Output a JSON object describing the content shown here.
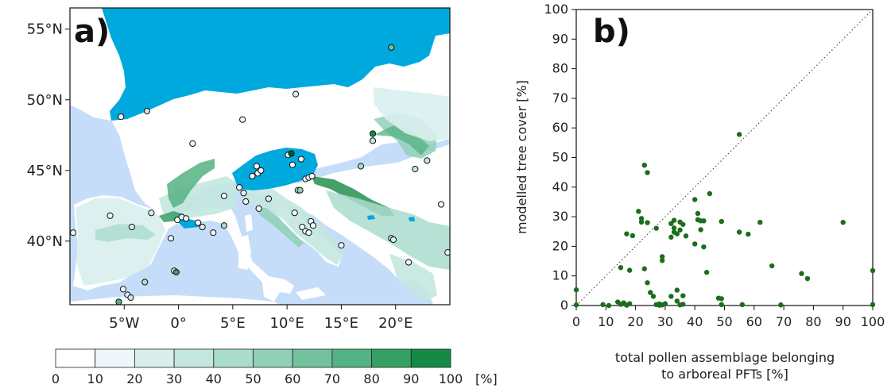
{
  "colors": {
    "ocean": "#c6ddfa",
    "ice": "#00a9dd",
    "land": "#ffffff",
    "points": "#1b6e1b",
    "colorbar": [
      "#ffffff",
      "#eef7fb",
      "#d9efee",
      "#c3e7df",
      "#aadccc",
      "#8fd0b6",
      "#72c29e",
      "#53b283",
      "#34a064",
      "#168a45",
      "#005a24"
    ]
  },
  "chart_data": [
    {
      "type": "map",
      "panel_label": "a)",
      "lat_ticks": [
        "55°N",
        "50°N",
        "45°N",
        "40°N"
      ],
      "lat_values": [
        55,
        50,
        45,
        40
      ],
      "lon_ticks": [
        "5°W",
        "0°",
        "5°E",
        "10°E",
        "15°E",
        "20°E"
      ],
      "lon_values": [
        -5,
        0,
        5,
        10,
        15,
        20
      ],
      "lon_range": [
        -10,
        25
      ],
      "lat_range": [
        35.5,
        56.5
      ],
      "colorbar": {
        "ticks": [
          "0",
          "10",
          "20",
          "30",
          "40",
          "50",
          "60",
          "70",
          "80",
          "90",
          "100"
        ],
        "unit": "[%]"
      },
      "sites": [
        {
          "lon": -9.7,
          "lat": 40.6,
          "value": 10
        },
        {
          "lon": -6.3,
          "lat": 41.8,
          "value": 5
        },
        {
          "lon": -4.3,
          "lat": 41.0,
          "value": 20
        },
        {
          "lon": -2.5,
          "lat": 42.0,
          "value": 15
        },
        {
          "lon": -0.7,
          "lat": 40.2,
          "value": 10
        },
        {
          "lon": -0.1,
          "lat": 41.5,
          "value": 10
        },
        {
          "lon": 0.3,
          "lat": 41.7,
          "value": 5
        },
        {
          "lon": 0.7,
          "lat": 41.6,
          "value": 8
        },
        {
          "lon": 1.8,
          "lat": 41.3,
          "value": 10
        },
        {
          "lon": 2.2,
          "lat": 41.0,
          "value": 15
        },
        {
          "lon": 3.2,
          "lat": 40.6,
          "value": 10
        },
        {
          "lon": 4.2,
          "lat": 41.1,
          "value": 35
        },
        {
          "lon": -5.1,
          "lat": 36.6,
          "value": 10
        },
        {
          "lon": -4.7,
          "lat": 36.2,
          "value": 15
        },
        {
          "lon": -4.4,
          "lat": 36.0,
          "value": 25
        },
        {
          "lon": -3.1,
          "lat": 37.1,
          "value": 40
        },
        {
          "lon": -0.4,
          "lat": 37.9,
          "value": 20
        },
        {
          "lon": -0.2,
          "lat": 37.8,
          "value": 80
        },
        {
          "lon": -5.5,
          "lat": 35.7,
          "value": 70
        },
        {
          "lon": -5.3,
          "lat": 48.8,
          "value": 5
        },
        {
          "lon": -2.9,
          "lat": 49.2,
          "value": 30
        },
        {
          "lon": 1.3,
          "lat": 46.9,
          "value": 5
        },
        {
          "lon": 5.9,
          "lat": 48.6,
          "value": 5
        },
        {
          "lon": 10.8,
          "lat": 50.4,
          "value": 15
        },
        {
          "lon": 19.6,
          "lat": 53.7,
          "value": 55
        },
        {
          "lon": 4.2,
          "lat": 43.2,
          "value": 5
        },
        {
          "lon": 5.6,
          "lat": 43.8,
          "value": 5
        },
        {
          "lon": 6.0,
          "lat": 43.4,
          "value": 5
        },
        {
          "lon": 6.2,
          "lat": 42.8,
          "value": 5
        },
        {
          "lon": 6.8,
          "lat": 44.6,
          "value": 5
        },
        {
          "lon": 7.2,
          "lat": 45.3,
          "value": 10
        },
        {
          "lon": 7.3,
          "lat": 44.8,
          "value": 5
        },
        {
          "lon": 7.6,
          "lat": 45.0,
          "value": 5
        },
        {
          "lon": 7.4,
          "lat": 42.3,
          "value": 5
        },
        {
          "lon": 8.3,
          "lat": 43.0,
          "value": 20
        },
        {
          "lon": 10.1,
          "lat": 46.1,
          "value": 5
        },
        {
          "lon": 10.4,
          "lat": 46.2,
          "value": 100
        },
        {
          "lon": 10.5,
          "lat": 45.4,
          "value": 10
        },
        {
          "lon": 11.3,
          "lat": 45.8,
          "value": 5
        },
        {
          "lon": 11.0,
          "lat": 43.6,
          "value": 30
        },
        {
          "lon": 11.2,
          "lat": 43.6,
          "value": 50
        },
        {
          "lon": 11.7,
          "lat": 44.4,
          "value": 5
        },
        {
          "lon": 12.0,
          "lat": 44.5,
          "value": 5
        },
        {
          "lon": 12.3,
          "lat": 44.6,
          "value": 5
        },
        {
          "lon": 10.7,
          "lat": 42.0,
          "value": 10
        },
        {
          "lon": 11.4,
          "lat": 41.0,
          "value": 10
        },
        {
          "lon": 11.7,
          "lat": 40.7,
          "value": 5
        },
        {
          "lon": 12.0,
          "lat": 40.6,
          "value": 5
        },
        {
          "lon": 12.2,
          "lat": 41.4,
          "value": 5
        },
        {
          "lon": 12.4,
          "lat": 41.1,
          "value": 10
        },
        {
          "lon": 15.0,
          "lat": 39.7,
          "value": 5
        },
        {
          "lon": 16.8,
          "lat": 45.3,
          "value": 40
        },
        {
          "lon": 17.9,
          "lat": 47.6,
          "value": 90
        },
        {
          "lon": 17.9,
          "lat": 47.1,
          "value": 30
        },
        {
          "lon": 19.6,
          "lat": 40.2,
          "value": 30
        },
        {
          "lon": 19.8,
          "lat": 40.1,
          "value": 20
        },
        {
          "lon": 21.2,
          "lat": 38.5,
          "value": 5
        },
        {
          "lon": 21.8,
          "lat": 45.1,
          "value": 25
        },
        {
          "lon": 22.9,
          "lat": 45.7,
          "value": 30
        },
        {
          "lon": 24.2,
          "lat": 42.6,
          "value": 5
        },
        {
          "lon": 24.8,
          "lat": 39.2,
          "value": 5
        }
      ]
    },
    {
      "type": "scatter",
      "panel_label": "b)",
      "xlabel": [
        "total pollen assemblage belonging",
        "to arboreal PFTs [%]"
      ],
      "ylabel": "modelled tree cover [%]",
      "xlim": [
        0,
        100
      ],
      "ylim": [
        0,
        100
      ],
      "xticks": [
        0,
        10,
        20,
        30,
        40,
        50,
        60,
        70,
        80,
        90,
        100
      ],
      "yticks": [
        0,
        10,
        20,
        30,
        40,
        50,
        60,
        70,
        80,
        90,
        100
      ],
      "reference_line": "1:1",
      "points": [
        [
          0,
          5.3
        ],
        [
          0,
          0.2
        ],
        [
          9,
          0.3
        ],
        [
          11,
          0
        ],
        [
          14,
          1.2
        ],
        [
          15,
          12.8
        ],
        [
          15,
          0.4
        ],
        [
          16,
          0.9
        ],
        [
          17,
          0.1
        ],
        [
          17,
          24.2
        ],
        [
          18,
          0.6
        ],
        [
          18,
          11.9
        ],
        [
          19,
          23.6
        ],
        [
          21,
          31.8
        ],
        [
          22,
          28.2
        ],
        [
          22,
          29.4
        ],
        [
          23,
          47.4
        ],
        [
          24,
          44.9
        ],
        [
          24,
          28
        ],
        [
          23,
          12.4
        ],
        [
          24,
          7.7
        ],
        [
          25,
          4.4
        ],
        [
          26,
          3.1
        ],
        [
          27,
          26.1
        ],
        [
          27,
          0.3
        ],
        [
          28,
          0.5
        ],
        [
          28,
          0.1
        ],
        [
          29,
          16.5
        ],
        [
          29,
          15.2
        ],
        [
          29,
          0.2
        ],
        [
          30,
          0.6
        ],
        [
          32,
          27.7
        ],
        [
          32,
          23.1
        ],
        [
          32,
          3.1
        ],
        [
          33,
          28.8
        ],
        [
          33,
          26.2
        ],
        [
          33,
          24.8
        ],
        [
          34,
          24.2
        ],
        [
          34,
          5.2
        ],
        [
          34,
          1.5
        ],
        [
          35,
          28.2
        ],
        [
          35,
          25.5
        ],
        [
          35,
          0.2
        ],
        [
          36,
          27.4
        ],
        [
          36,
          3.3
        ],
        [
          36,
          0.4
        ],
        [
          37,
          23.5
        ],
        [
          40,
          35.8
        ],
        [
          40,
          20.8
        ],
        [
          41,
          31.1
        ],
        [
          41,
          29
        ],
        [
          42,
          28.6
        ],
        [
          42,
          25.6
        ],
        [
          43,
          28.6
        ],
        [
          43,
          19.8
        ],
        [
          44,
          11.2
        ],
        [
          45,
          37.8
        ],
        [
          48,
          2.5
        ],
        [
          49,
          28.4
        ],
        [
          49,
          0.3
        ],
        [
          49,
          2.3
        ],
        [
          55,
          57.8
        ],
        [
          55,
          24.8
        ],
        [
          56,
          0.3
        ],
        [
          58,
          24.1
        ],
        [
          62,
          28.1
        ],
        [
          66,
          13.4
        ],
        [
          69,
          0.2
        ],
        [
          76,
          10.8
        ],
        [
          78,
          9.1
        ],
        [
          90,
          28.1
        ],
        [
          100,
          11.8
        ],
        [
          100,
          0.3
        ]
      ]
    }
  ]
}
